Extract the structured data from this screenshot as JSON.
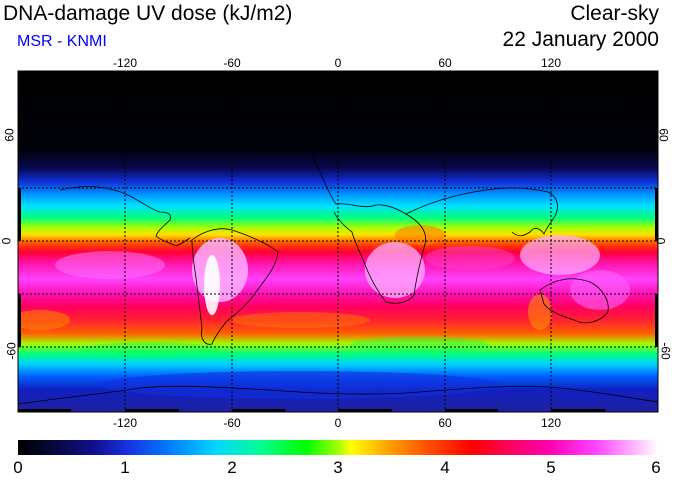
{
  "header": {
    "title": "DNA-damage UV dose (kJ/m2)",
    "subtitle": "MSR - KNMI",
    "condition": "Clear-sky",
    "date": "22 January 2000"
  },
  "axes": {
    "lon_labels": [
      "-120",
      "-60",
      "0",
      "60",
      "120"
    ],
    "lat_labels_left": [
      "60",
      "0",
      "-60"
    ],
    "lat_labels_right": [
      "60",
      "0",
      "-60"
    ]
  },
  "colorbar": {
    "labels": [
      "0",
      "1",
      "2",
      "3",
      "4",
      "5",
      "6"
    ],
    "min": 0,
    "max": 6
  },
  "colors": {
    "grid": "#000000",
    "coast": "#000000",
    "subtitle": "#0000ff"
  }
}
